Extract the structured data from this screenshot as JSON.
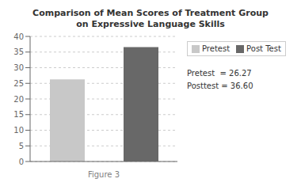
{
  "chart_data": {
    "type": "bar",
    "title": "Comparison of Mean Scores of Treatment Group",
    "subtitle": "on Expressive Language Skills",
    "categories": [
      "Pretest",
      "Post Test"
    ],
    "values": [
      26.27,
      36.6
    ],
    "colors": [
      "#c8c8c8",
      "#686868"
    ],
    "ylim": [
      0,
      40
    ],
    "yticks": [
      0,
      5,
      10,
      15,
      20,
      25,
      30,
      35,
      40
    ],
    "xlabel": "Figure 3",
    "annotations": [
      "Pretest  = 26.27",
      "Posttest = 36.60"
    ],
    "grid": true,
    "legend": "right",
    "tick_labels": "y"
  }
}
